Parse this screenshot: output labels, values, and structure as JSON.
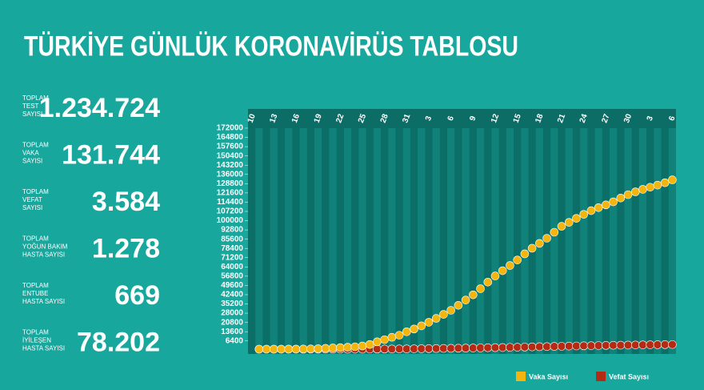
{
  "title": "TÜRKİYE GÜNLÜK KORONAVİRÜS TABLOSU",
  "stats": [
    {
      "label": [
        "TOPLAM",
        "TEST",
        "SAYISI"
      ],
      "value": "1.234.724"
    },
    {
      "label": [
        "TOPLAM",
        "VAKA",
        "SAYISI"
      ],
      "value": "131.744"
    },
    {
      "label": [
        "TOPLAM",
        "VEFAT",
        "SAYISI"
      ],
      "value": "3.584"
    },
    {
      "label": [
        "TOPLAM",
        "YOĞUN BAKIM",
        "HASTA SAYISI"
      ],
      "value": "1.278"
    },
    {
      "label": [
        "TOPLAM",
        "ENTUBE",
        "HASTA SAYISI"
      ],
      "value": "669"
    },
    {
      "label": [
        "TOPLAM",
        "İYİLEŞEN",
        "HASTA SAYISI"
      ],
      "value": "78.202"
    }
  ],
  "chart_data": {
    "type": "scatter",
    "categories": [
      "10",
      null,
      null,
      "13",
      null,
      null,
      "16",
      null,
      null,
      "19",
      null,
      null,
      "22",
      null,
      null,
      "25",
      null,
      null,
      "28",
      null,
      null,
      "31",
      null,
      null,
      "3",
      null,
      null,
      "6",
      null,
      null,
      "9",
      null,
      null,
      "12",
      null,
      null,
      "15",
      null,
      null,
      "18",
      null,
      null,
      "21",
      null,
      null,
      "24",
      null,
      null,
      "27",
      null,
      null,
      "30",
      null,
      null,
      "3",
      null,
      null,
      "6"
    ],
    "series": [
      {
        "name": "Vaka Sayısı",
        "color": "#f5b50f",
        "values": [
          null,
          1,
          1,
          5,
          6,
          18,
          47,
          98,
          191,
          359,
          670,
          947,
          1236,
          1529,
          1872,
          2433,
          3629,
          5698,
          7402,
          9217,
          10827,
          13531,
          15679,
          18135,
          20921,
          23934,
          27069,
          30217,
          34109,
          38226,
          42282,
          47029,
          52167,
          56956,
          61049,
          65111,
          69392,
          74193,
          78546,
          82329,
          86306,
          90980,
          95591,
          98674,
          101790,
          104912,
          107773,
          110130,
          112261,
          114653,
          117589,
          120204,
          122392,
          124375,
          126045,
          127659,
          129491,
          131744
        ]
      },
      {
        "name": "Vefat Sayısı",
        "color": "#b52a12",
        "values": [
          null,
          0,
          0,
          0,
          0,
          0,
          0,
          1,
          2,
          4,
          9,
          21,
          30,
          37,
          44,
          59,
          75,
          92,
          108,
          131,
          168,
          214,
          277,
          356,
          425,
          501,
          574,
          649,
          725,
          812,
          908,
          1006,
          1101,
          1198,
          1296,
          1403,
          1518,
          1643,
          1769,
          1890,
          2017,
          2140,
          2259,
          2376,
          2491,
          2600,
          2706,
          2805,
          2900,
          2992,
          3081,
          3174,
          3258,
          3336,
          3397,
          3461,
          3520,
          3584
        ]
      }
    ],
    "ylim": [
      0,
      172000
    ],
    "yticks": [
      6400,
      13600,
      20800,
      28000,
      35200,
      42400,
      49600,
      56800,
      64000,
      71200,
      78400,
      85600,
      92800,
      100000,
      107200,
      114400,
      121600,
      128800,
      136000,
      143200,
      150400,
      157600,
      164800,
      172000
    ],
    "grid": false
  }
}
